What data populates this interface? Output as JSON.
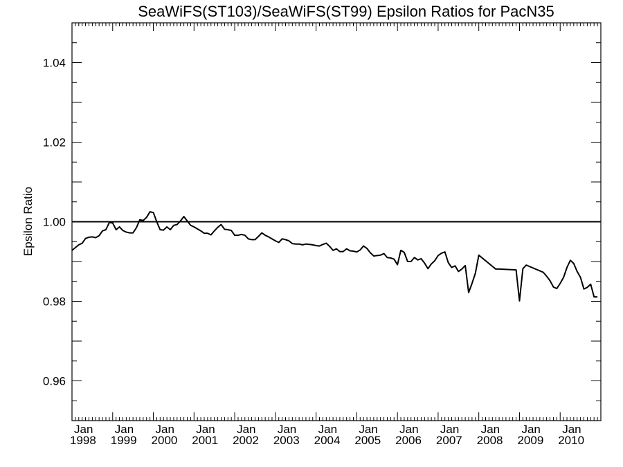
{
  "chart_data": {
    "type": "line",
    "title": "SeaWiFS(ST103)/SeaWiFS(ST99)  Epsilon Ratios for PacN35",
    "xlabel": "",
    "ylabel": "Epsilon Ratio",
    "xlim": [
      "1998-01",
      "2011-01"
    ],
    "ylim": [
      0.95,
      1.05
    ],
    "y_major_ticks": [
      0.96,
      0.98,
      1.0,
      1.02,
      1.04
    ],
    "y_tick_labels": [
      "0.96",
      "0.98",
      "1.00",
      "1.02",
      "1.04"
    ],
    "x_tick_labels": [
      {
        "month": "Jan",
        "year": "1998"
      },
      {
        "month": "Jan",
        "year": "1999"
      },
      {
        "month": "Jan",
        "year": "2000"
      },
      {
        "month": "Jan",
        "year": "2001"
      },
      {
        "month": "Jan",
        "year": "2002"
      },
      {
        "month": "Jan",
        "year": "2003"
      },
      {
        "month": "Jan",
        "year": "2004"
      },
      {
        "month": "Jan",
        "year": "2005"
      },
      {
        "month": "Jan",
        "year": "2006"
      },
      {
        "month": "Jan",
        "year": "2007"
      },
      {
        "month": "Jan",
        "year": "2008"
      },
      {
        "month": "Jan",
        "year": "2009"
      },
      {
        "month": "Jan",
        "year": "2010"
      }
    ],
    "reference_line": 1.0,
    "grid": false,
    "series": [
      {
        "color": "#000000",
        "x": [
          "1998-01-01",
          "1998-02-01",
          "1998-03-01",
          "1998-04-01",
          "1998-05-01",
          "1998-06-01",
          "1998-07-01",
          "1998-08-01",
          "1998-09-01",
          "1998-10-01",
          "1998-11-01",
          "1998-12-01",
          "1999-01-01",
          "1999-02-01",
          "1999-03-01",
          "1999-04-01",
          "1999-05-01",
          "1999-06-01",
          "1999-07-01",
          "1999-08-01",
          "1999-09-01",
          "1999-10-01",
          "1999-11-01",
          "1999-12-01",
          "2000-01-01",
          "2000-02-01",
          "2000-03-01",
          "2000-04-01",
          "2000-05-01",
          "2000-06-01",
          "2000-07-01",
          "2000-08-01",
          "2000-09-01",
          "2000-10-01",
          "2000-11-01",
          "2000-12-01",
          "2001-01-01",
          "2001-02-01",
          "2001-03-01",
          "2001-04-01",
          "2001-05-01",
          "2001-06-01",
          "2001-07-01",
          "2001-08-01",
          "2001-09-01",
          "2001-10-01",
          "2001-11-01",
          "2001-12-01",
          "2002-01-01",
          "2002-02-01",
          "2002-03-01",
          "2002-04-01",
          "2002-05-01",
          "2002-06-01",
          "2002-07-01",
          "2002-08-01",
          "2002-09-01",
          "2002-10-01",
          "2002-11-01",
          "2002-12-01",
          "2003-01-01",
          "2003-02-01",
          "2003-03-01",
          "2003-04-01",
          "2003-05-01",
          "2003-06-01",
          "2003-07-01",
          "2003-08-01",
          "2003-09-01",
          "2003-10-01",
          "2003-11-01",
          "2003-12-01",
          "2004-01-01",
          "2004-02-01",
          "2004-03-01",
          "2004-04-01",
          "2004-05-01",
          "2004-06-01",
          "2004-07-01",
          "2004-08-01",
          "2004-09-01",
          "2004-10-01",
          "2004-11-01",
          "2004-12-01",
          "2005-01-01",
          "2005-02-01",
          "2005-03-01",
          "2005-04-01",
          "2005-05-01",
          "2005-06-01",
          "2005-07-01",
          "2005-08-01",
          "2005-09-01",
          "2005-10-01",
          "2005-11-01",
          "2005-12-01",
          "2006-01-01",
          "2006-02-01",
          "2006-03-01",
          "2006-04-01",
          "2006-05-01",
          "2006-06-01",
          "2006-07-01",
          "2006-08-01",
          "2006-09-01",
          "2006-10-01",
          "2006-11-01",
          "2006-12-01",
          "2007-01-01",
          "2007-02-01",
          "2007-03-01",
          "2007-04-01",
          "2007-05-01",
          "2007-06-01",
          "2007-07-01",
          "2007-08-01",
          "2007-09-01",
          "2007-10-01",
          "2007-11-01",
          "2007-12-01",
          "2008-01-01",
          "2008-06-01",
          "2008-07-01",
          "2008-12-01",
          "2009-01-01",
          "2009-02-01",
          "2009-03-01",
          "2009-08-01",
          "2009-09-01",
          "2009-10-01",
          "2009-11-01",
          "2009-12-01",
          "2010-01-01",
          "2010-02-01",
          "2010-03-01",
          "2010-04-01",
          "2010-05-01",
          "2010-06-01",
          "2010-07-01",
          "2010-08-01",
          "2010-09-01",
          "2010-10-01",
          "2010-11-01",
          "2010-12-01"
        ],
        "y": [
          0.9928,
          0.9935,
          0.9942,
          0.9946,
          0.9958,
          0.9961,
          0.9962,
          0.996,
          0.9965,
          0.9977,
          0.998,
          0.9998,
          0.9997,
          0.998,
          0.9987,
          0.9978,
          0.9974,
          0.9972,
          0.9972,
          0.9985,
          1.0005,
          1.0003,
          1.0011,
          1.0025,
          1.0023,
          1.0,
          0.998,
          0.9979,
          0.9987,
          0.998,
          0.9991,
          0.9993,
          1.0002,
          1.0013,
          1.0002,
          0.9991,
          0.9987,
          0.9982,
          0.9977,
          0.9971,
          0.9971,
          0.9967,
          0.9977,
          0.9986,
          0.9993,
          0.9981,
          0.998,
          0.9978,
          0.9966,
          0.9966,
          0.9968,
          0.9966,
          0.9957,
          0.9955,
          0.9955,
          0.9963,
          0.9972,
          0.9966,
          0.9962,
          0.9957,
          0.9952,
          0.9948,
          0.9957,
          0.9955,
          0.9952,
          0.9945,
          0.9944,
          0.9944,
          0.9942,
          0.9944,
          0.9943,
          0.9942,
          0.994,
          0.9939,
          0.9943,
          0.9946,
          0.9938,
          0.9928,
          0.9932,
          0.9925,
          0.9925,
          0.9932,
          0.9927,
          0.9926,
          0.9924,
          0.9929,
          0.9939,
          0.9933,
          0.9922,
          0.9914,
          0.9915,
          0.9916,
          0.992,
          0.991,
          0.9909,
          0.9906,
          0.9892,
          0.9928,
          0.9923,
          0.99,
          0.99,
          0.991,
          0.9904,
          0.9907,
          0.9896,
          0.9882,
          0.9894,
          0.9902,
          0.9915,
          0.9921,
          0.9924,
          0.9897,
          0.9885,
          0.9889,
          0.9875,
          0.9881,
          0.989,
          0.9822,
          0.9845,
          0.9871,
          0.9916,
          0.9881,
          0.9881,
          0.9879,
          0.9801,
          0.9882,
          0.9891,
          0.9873,
          0.9863,
          0.9852,
          0.9836,
          0.9832,
          0.9845,
          0.986,
          0.9885,
          0.9903,
          0.9895,
          0.9875,
          0.986,
          0.9831,
          0.9835,
          0.9843,
          0.9811,
          0.9811
        ]
      }
    ]
  }
}
